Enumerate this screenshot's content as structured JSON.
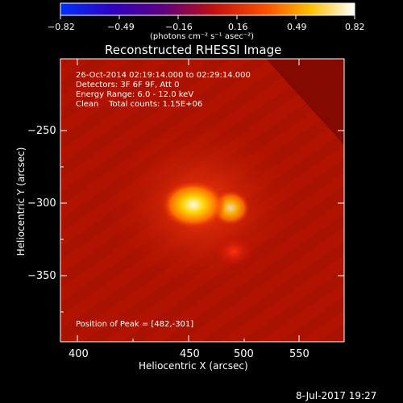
{
  "colorbar": {
    "tick_labels": [
      "−0.82",
      "−0.49",
      "−0.16",
      "0.16",
      "0.49",
      "0.82"
    ],
    "unit_label": "(photons cm⁻² s⁻¹ asec⁻²)"
  },
  "plot": {
    "title": "Reconstructed RHESSI Image",
    "info_lines": [
      "26-Oct-2014 02:19:14.000 to 02:29:14.000",
      "Detectors: 3F 6F 9F, Att 0",
      "Energy Range: 6.0 - 12.0 keV",
      "Clean    Total counts: 1.15E+06"
    ],
    "peak_text": "Position of Peak = [482,-301]",
    "x_ticks": [
      "400",
      "450",
      "500",
      "550"
    ],
    "y_ticks": [
      "−250",
      "−300",
      "−350"
    ],
    "x_label": "Heliocentric X (arcsec)",
    "y_label": "Heliocentric Y (arcsec)"
  },
  "footer": {
    "date": "8-Jul-2017 19:27"
  }
}
